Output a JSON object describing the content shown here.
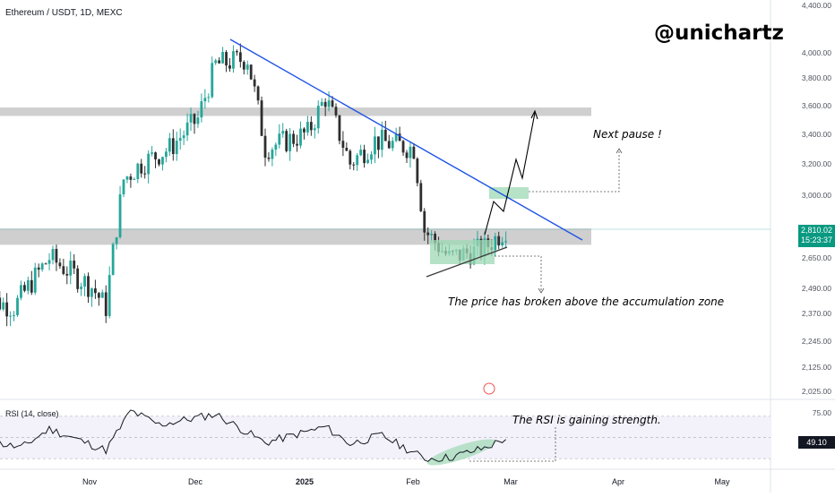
{
  "header": {
    "symbol_line": "Ethereum / USDT, 1D, MEXC",
    "brand": "@unichartz"
  },
  "annotations": {
    "next_pause": "Next pause !",
    "breakout": "The price has broken above the accumulation zone",
    "rsi_note": "The RSI is gaining strength."
  },
  "price_axis": {
    "ticks": [
      "4,400.00",
      "4,000.00",
      "3,800.00",
      "3,600.00",
      "3,400.00",
      "3,200.00",
      "3,000.00",
      "2,650.00",
      "2,490.00",
      "2,370.00",
      "2,245.00",
      "2,125.00",
      "2,025.00"
    ],
    "last_price": "2,810.02",
    "countdown": "15:23:37"
  },
  "rsi": {
    "label": "RSI (14, close)",
    "top_tick": "75.00",
    "value": "49.10"
  },
  "time_axis": {
    "labels": [
      "Nov",
      "Dec",
      "2025",
      "Feb",
      "Mar",
      "Apr",
      "May"
    ]
  },
  "colors": {
    "up": "#26a69a",
    "down": "#2e2e2e",
    "trendline": "#1e53e5",
    "zone": "#cfcfcf",
    "accum": "#9ed8b4",
    "price_badge": "#089981",
    "rsi_badge": "#131722"
  },
  "chart_data": {
    "type": "candlestick",
    "title": "Ethereum / USDT, 1D, MEXC",
    "price_range": [
      2025,
      4400
    ],
    "rsi_range": [
      20,
      80
    ],
    "rsi_bands": [
      30,
      70
    ],
    "x_dates": {
      "start": "2024-10-01",
      "labels": [
        "Nov",
        "Dec",
        "2025",
        "Feb",
        "Mar",
        "Apr",
        "May"
      ]
    },
    "resistance_zone": [
      3520,
      3580
    ],
    "support_zone": [
      2720,
      2810
    ],
    "ohlc_anchors": [
      [
        "2024-10-01",
        2450
      ],
      [
        "2024-10-10",
        2400
      ],
      [
        "2024-10-20",
        2650
      ],
      [
        "2024-11-01",
        2500
      ],
      [
        "2024-11-05",
        2400
      ],
      [
        "2024-11-10",
        3100
      ],
      [
        "2024-11-15",
        3200
      ],
      [
        "2024-11-23",
        3300
      ],
      [
        "2024-12-01",
        3500
      ],
      [
        "2024-12-06",
        3900
      ],
      [
        "2024-12-15",
        3950
      ],
      [
        "2024-12-20",
        3300
      ],
      [
        "2025-01-01",
        3400
      ],
      [
        "2025-01-06",
        3650
      ],
      [
        "2025-01-13",
        3200
      ],
      [
        "2025-01-20",
        3350
      ],
      [
        "2025-01-31",
        3300
      ],
      [
        "2025-02-03",
        2800
      ],
      [
        "2025-02-10",
        2650
      ],
      [
        "2025-02-20",
        2700
      ],
      [
        "2025-02-26",
        2810
      ]
    ],
    "rsi_anchors": [
      [
        "2024-10-01",
        48
      ],
      [
        "2024-10-12",
        40
      ],
      [
        "2024-10-20",
        58
      ],
      [
        "2024-11-05",
        38
      ],
      [
        "2024-11-12",
        75
      ],
      [
        "2024-11-20",
        62
      ],
      [
        "2024-12-06",
        72
      ],
      [
        "2024-12-20",
        45
      ],
      [
        "2025-01-06",
        60
      ],
      [
        "2025-01-13",
        44
      ],
      [
        "2025-01-22",
        52
      ],
      [
        "2025-02-03",
        30
      ],
      [
        "2025-02-10",
        31
      ],
      [
        "2025-02-20",
        40
      ],
      [
        "2025-02-26",
        49.1
      ]
    ]
  }
}
